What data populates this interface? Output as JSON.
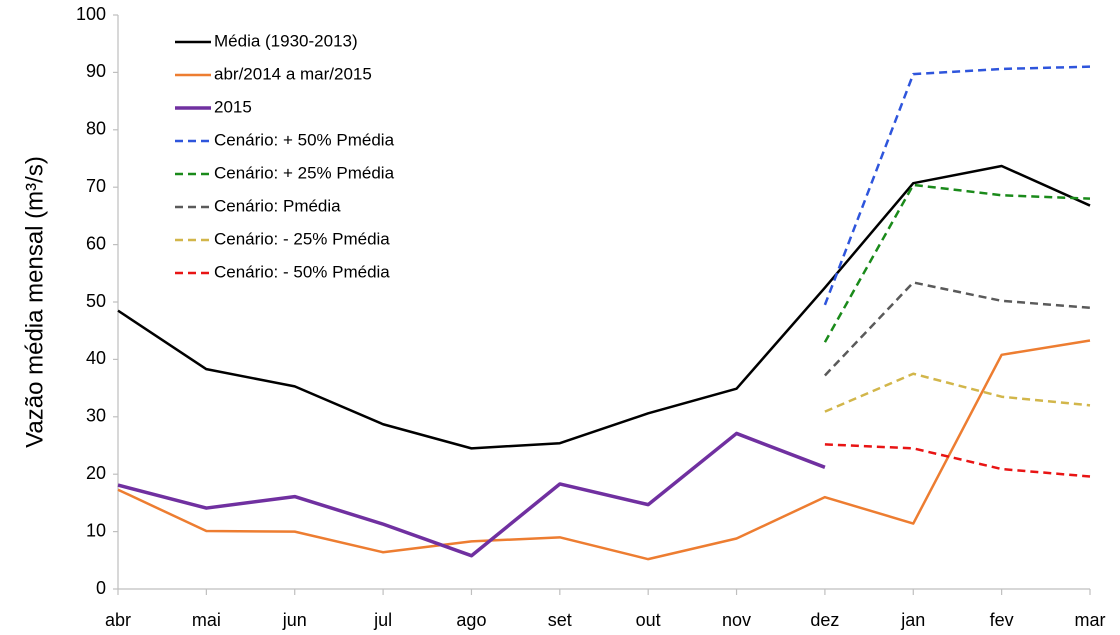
{
  "chart_data": {
    "type": "line",
    "y_label": "Vazão média mensal (m³/s)",
    "categories": [
      "abr",
      "mai",
      "jun",
      "jul",
      "ago",
      "set",
      "out",
      "nov",
      "dez",
      "jan",
      "fev",
      "mar"
    ],
    "series": [
      {
        "name": "Média (1930-2013)",
        "color": "#000000",
        "line_style": "solid",
        "linewidth": 2.5,
        "values": [
          48.5,
          38.3,
          35.3,
          28.7,
          24.5,
          25.4,
          30.6,
          34.9,
          52.5,
          70.7,
          73.7,
          66.8
        ]
      },
      {
        "name": "abr/2014 a mar/2015",
        "color": "#ed7d31",
        "line_style": "solid",
        "linewidth": 2.5,
        "values": [
          17.3,
          10.1,
          10.0,
          6.4,
          8.3,
          9.0,
          5.2,
          8.8,
          16.0,
          11.4,
          40.8,
          43.3
        ]
      },
      {
        "name": "2015",
        "color": "#7030a0",
        "line_style": "solid",
        "linewidth": 3.5,
        "values": [
          18.1,
          14.1,
          16.1,
          11.3,
          5.8,
          18.3,
          14.7,
          27.1,
          21.2,
          null,
          null,
          null
        ]
      },
      {
        "name": "Cenário: + 50% Pmédia",
        "color": "#2e55dc",
        "line_style": "dashed",
        "linewidth": 2.5,
        "values": [
          null,
          null,
          null,
          null,
          null,
          null,
          null,
          null,
          49.5,
          89.7,
          90.6,
          91.0
        ]
      },
      {
        "name": "Cenário: + 25% Pmédia",
        "color": "#1a8a1a",
        "line_style": "dashed",
        "linewidth": 2.5,
        "values": [
          null,
          null,
          null,
          null,
          null,
          null,
          null,
          null,
          43.0,
          70.4,
          68.6,
          68.0
        ]
      },
      {
        "name": "Cenário: Pmédia",
        "color": "#5a5a5a",
        "line_style": "dashed",
        "linewidth": 2.5,
        "values": [
          null,
          null,
          null,
          null,
          null,
          null,
          null,
          null,
          37.2,
          53.4,
          50.2,
          49.0
        ]
      },
      {
        "name": "Cenário: - 25% Pmédia",
        "color": "#d2b64a",
        "line_style": "dashed",
        "linewidth": 2.5,
        "values": [
          null,
          null,
          null,
          null,
          null,
          null,
          null,
          null,
          30.9,
          37.5,
          33.5,
          32.0
        ]
      },
      {
        "name": "Cenário: - 50% Pmédia",
        "color": "#e81414",
        "line_style": "dashed",
        "linewidth": 2.5,
        "values": [
          null,
          null,
          null,
          null,
          null,
          null,
          null,
          null,
          25.2,
          24.5,
          20.9,
          19.6
        ]
      }
    ],
    "ylim": [
      0,
      100
    ],
    "yticks": [
      0,
      10,
      20,
      30,
      40,
      50,
      60,
      70,
      80,
      90,
      100
    ],
    "grid": false,
    "legend": "upper-left"
  }
}
